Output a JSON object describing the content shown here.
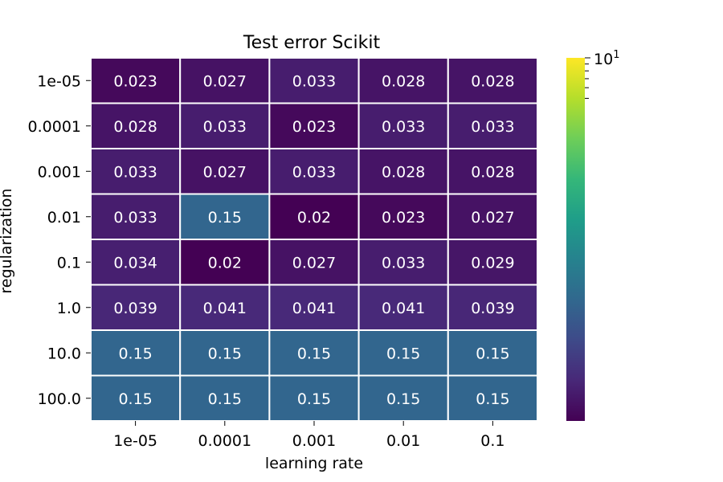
{
  "chart_data": {
    "type": "heatmap",
    "title": "Test error Scikit",
    "xlabel": "learning rate",
    "ylabel": "regularization",
    "x_categories": [
      "1e-05",
      "0.0001",
      "0.001",
      "0.01",
      "0.1"
    ],
    "y_categories": [
      "1e-05",
      "0.0001",
      "0.001",
      "0.01",
      "0.1",
      "1.0",
      "10.0",
      "100.0"
    ],
    "values": [
      [
        0.023,
        0.027,
        0.033,
        0.028,
        0.028
      ],
      [
        0.028,
        0.033,
        0.023,
        0.033,
        0.033
      ],
      [
        0.033,
        0.027,
        0.033,
        0.028,
        0.028
      ],
      [
        0.033,
        0.15,
        0.02,
        0.023,
        0.027
      ],
      [
        0.034,
        0.02,
        0.027,
        0.033,
        0.029
      ],
      [
        0.039,
        0.041,
        0.041,
        0.041,
        0.039
      ],
      [
        0.15,
        0.15,
        0.15,
        0.15,
        0.15
      ],
      [
        0.15,
        0.15,
        0.15,
        0.15,
        0.15
      ]
    ],
    "value_labels": [
      [
        "0.023",
        "0.027",
        "0.033",
        "0.028",
        "0.028"
      ],
      [
        "0.028",
        "0.033",
        "0.023",
        "0.033",
        "0.033"
      ],
      [
        "0.033",
        "0.027",
        "0.033",
        "0.028",
        "0.028"
      ],
      [
        "0.033",
        "0.15",
        "0.02",
        "0.023",
        "0.027"
      ],
      [
        "0.034",
        "0.02",
        "0.027",
        "0.033",
        "0.029"
      ],
      [
        "0.039",
        "0.041",
        "0.041",
        "0.041",
        "0.039"
      ],
      [
        "0.15",
        "0.15",
        "0.15",
        "0.15",
        "0.15"
      ],
      [
        "0.15",
        "0.15",
        "0.15",
        "0.15",
        "0.15"
      ]
    ],
    "colorbar": {
      "scale": "log",
      "colormap": "viridis",
      "range": [
        0.02,
        10
      ],
      "max_label_base": "10",
      "max_label_exp": "1",
      "minor_ticks": [
        9,
        8,
        7,
        6,
        5
      ]
    },
    "cell_separator_color": "#ffffff",
    "colors": {
      "viridis": [
        "#440154",
        "#482878",
        "#3e4a89",
        "#31688e",
        "#26828e",
        "#1f9e89",
        "#35b779",
        "#6ece58",
        "#b5de2b",
        "#fde725"
      ]
    }
  }
}
